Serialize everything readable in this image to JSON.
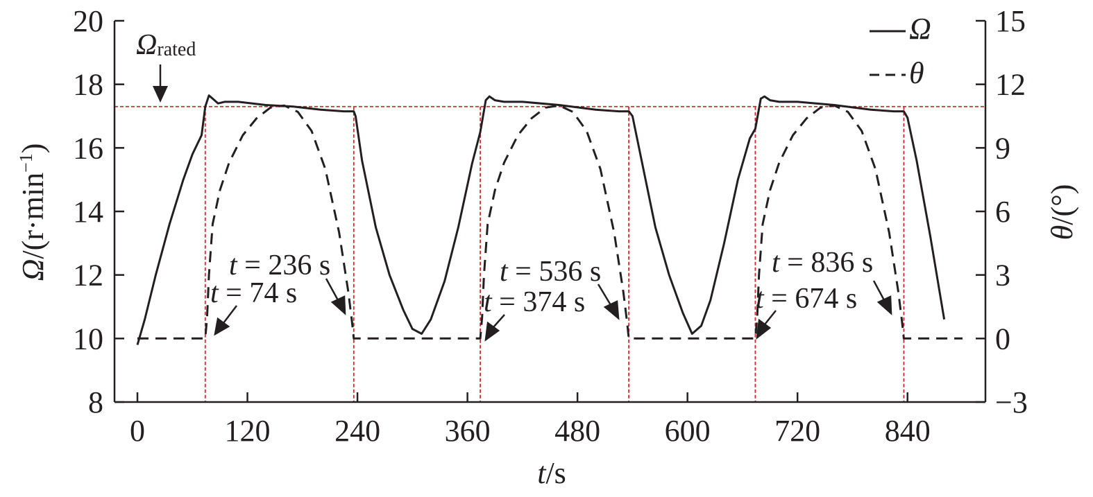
{
  "chart_data": {
    "type": "line",
    "x_axis": {
      "label_var": "t",
      "label_unit": "/s",
      "range": [
        -25,
        925
      ],
      "ticks": [
        0,
        120,
        240,
        360,
        480,
        600,
        720,
        840
      ],
      "tick_labels": [
        "0",
        "120",
        "240",
        "360",
        "480",
        "600",
        "720",
        "840"
      ]
    },
    "y_left": {
      "label_var": "Ω",
      "label_pre": "/(r·min",
      "label_sup": "−1",
      "label_post": ")",
      "range": [
        8,
        20
      ],
      "ticks": [
        8,
        10,
        12,
        14,
        16,
        18,
        20
      ],
      "tick_labels": [
        "8",
        "10",
        "12",
        "14",
        "16",
        "18",
        "20"
      ]
    },
    "y_right": {
      "label_var": "θ",
      "label_unit": "/(°)",
      "range": [
        -3,
        15
      ],
      "ticks": [
        -3,
        0,
        3,
        6,
        9,
        12,
        15
      ],
      "tick_labels": [
        "−3",
        "0",
        "3",
        "6",
        "9",
        "12",
        "15"
      ]
    },
    "reference_lines": {
      "rated_speed": 17.3,
      "vertical_times": [
        74,
        236,
        374,
        536,
        674,
        836
      ],
      "color": "#d7282f"
    },
    "rated_label": {
      "main": "Ω",
      "sub": "rated"
    },
    "legend": {
      "position": "top-right",
      "entries": [
        {
          "label": "Ω",
          "style": "solid"
        },
        {
          "label": "θ",
          "style": "dashed"
        }
      ]
    },
    "annotations": [
      {
        "var": "t",
        "rest": " = 236 s"
      },
      {
        "var": "t",
        "rest": " = 74 s"
      },
      {
        "var": "t",
        "rest": " = 536 s"
      },
      {
        "var": "t",
        "rest": " = 374 s"
      },
      {
        "var": "t",
        "rest": " = 836 s"
      },
      {
        "var": "t",
        "rest": " = 674 s"
      }
    ],
    "series": [
      {
        "name": "Ω",
        "axis": "left",
        "style": "solid",
        "x": [
          0,
          8,
          20,
          35,
          50,
          60,
          70,
          74,
          78,
          82,
          88,
          95,
          110,
          140,
          170,
          200,
          225,
          236,
          238,
          245,
          260,
          275,
          290,
          300,
          310,
          320,
          335,
          350,
          365,
          374,
          380,
          384,
          390,
          400,
          420,
          460,
          500,
          525,
          536,
          540,
          550,
          565,
          580,
          595,
          605,
          615,
          625,
          640,
          655,
          668,
          674,
          680,
          684,
          690,
          700,
          720,
          760,
          800,
          825,
          836,
          840,
          850,
          865,
          880
        ],
        "y": [
          9.8,
          10.6,
          12.0,
          13.6,
          15.0,
          15.8,
          16.4,
          17.3,
          17.65,
          17.55,
          17.4,
          17.45,
          17.45,
          17.35,
          17.3,
          17.2,
          17.15,
          17.15,
          17.0,
          15.6,
          13.5,
          12.0,
          10.9,
          10.3,
          10.15,
          10.6,
          11.8,
          13.5,
          15.5,
          16.5,
          17.5,
          17.62,
          17.5,
          17.45,
          17.45,
          17.35,
          17.2,
          17.15,
          17.15,
          17.0,
          15.6,
          13.5,
          12.0,
          10.8,
          10.15,
          10.4,
          11.2,
          13.0,
          15.0,
          16.3,
          16.6,
          17.55,
          17.62,
          17.5,
          17.45,
          17.45,
          17.35,
          17.2,
          17.15,
          17.15,
          16.95,
          15.6,
          13.2,
          10.6
        ]
      },
      {
        "name": "θ",
        "axis": "right",
        "style": "dashed",
        "x": [
          0,
          74,
          76,
          78,
          82,
          90,
          100,
          115,
          130,
          145,
          160,
          175,
          190,
          205,
          220,
          230,
          234,
          236,
          240,
          300,
          374,
          376,
          378,
          382,
          390,
          400,
          415,
          430,
          445,
          460,
          475,
          490,
          505,
          520,
          530,
          534,
          536,
          540,
          600,
          674,
          676,
          678,
          682,
          690,
          700,
          715,
          730,
          745,
          760,
          775,
          790,
          805,
          820,
          830,
          834,
          836,
          840,
          900
        ],
        "y": [
          0,
          0,
          1.0,
          3.0,
          5.4,
          7.0,
          8.3,
          9.6,
          10.4,
          10.9,
          11.0,
          10.7,
          9.8,
          8.0,
          5.0,
          2.2,
          0.8,
          0,
          0,
          0,
          0,
          1.0,
          3.0,
          5.4,
          7.0,
          8.3,
          9.6,
          10.4,
          10.9,
          11.0,
          10.7,
          9.8,
          8.0,
          5.0,
          2.2,
          0.8,
          0,
          0,
          0,
          0,
          1.0,
          3.0,
          5.4,
          7.0,
          8.3,
          9.6,
          10.4,
          10.9,
          11.0,
          10.7,
          9.8,
          8.0,
          5.0,
          2.2,
          0.8,
          0,
          0,
          0
        ]
      }
    ]
  }
}
